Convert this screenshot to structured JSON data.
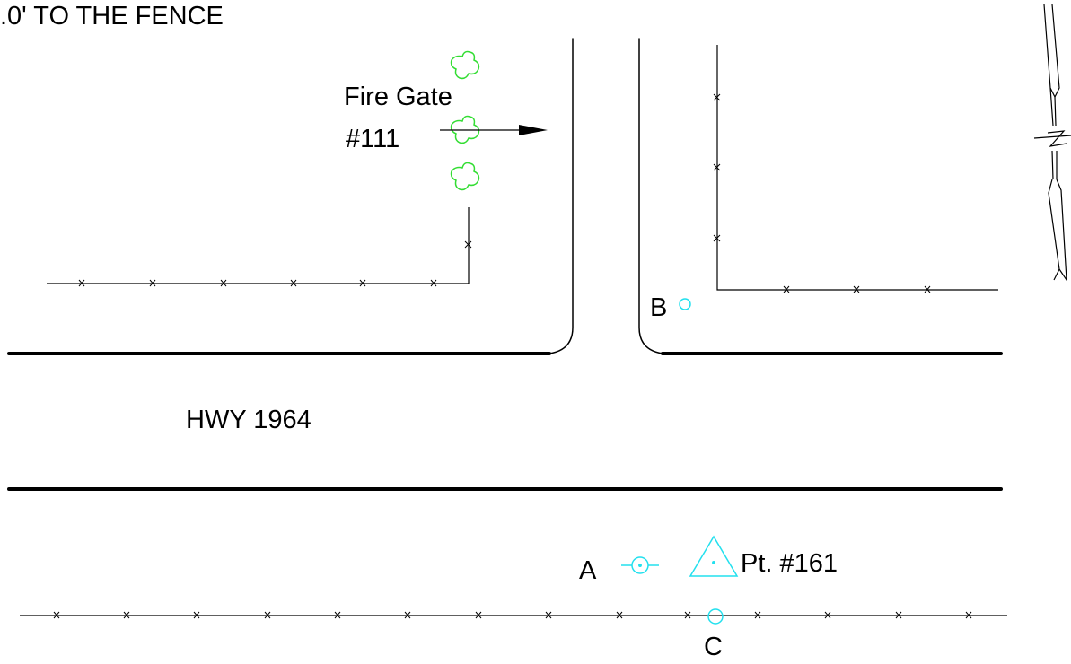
{
  "labels": {
    "fence_note": ".0' TO THE FENCE",
    "fire_gate_title": "Fire Gate",
    "fire_gate_number": "#111",
    "highway": "HWY 1964",
    "point_a": "A",
    "point_b": "B",
    "point_c": "C",
    "control_point": "Pt. #161"
  },
  "colors": {
    "linework": "#000000",
    "trees": "#33dd33",
    "survey_marks": "#22e0ee"
  },
  "icons": {
    "tree": "tree-symbol-icon",
    "survey_point": "survey-point-icon",
    "control_point": "triangle-control-point-icon",
    "north_arrow": "north-arrow-icon"
  }
}
